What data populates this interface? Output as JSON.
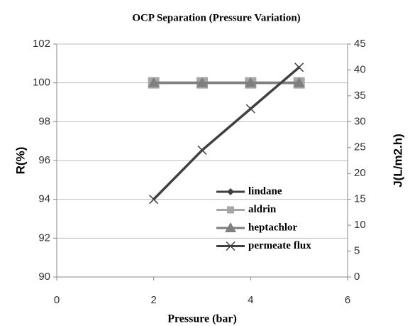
{
  "chart_data": {
    "type": "line",
    "title": "OCP Separation (Pressure Variation)",
    "xlabel": "Pressure (bar)",
    "ylabel": "R(%)",
    "y2label": "J(L/m2.h)",
    "x": [
      2,
      3,
      4,
      5
    ],
    "xlim": [
      0,
      6
    ],
    "xticks": [
      0,
      2,
      4,
      6
    ],
    "ylim": [
      90,
      102
    ],
    "yticks": [
      90,
      92,
      94,
      96,
      98,
      100,
      102
    ],
    "y2lim": [
      0,
      45
    ],
    "y2ticks": [
      0,
      5,
      10,
      15,
      20,
      25,
      30,
      35,
      40,
      45
    ],
    "grid": true,
    "legend": "lower right",
    "series": [
      {
        "name": "lindane",
        "color": "#404040",
        "marker": "diamond",
        "values": [
          100,
          100,
          100,
          100
        ]
      },
      {
        "name": "aldrin",
        "color": "#a6a6a6",
        "marker": "square",
        "values": [
          100,
          100,
          100,
          100
        ]
      },
      {
        "name": "heptachlor",
        "color": "#7f7f7f",
        "marker": "triangle",
        "values": [
          100,
          100,
          100,
          100
        ]
      },
      {
        "name": "permeate flux",
        "color": "#404040",
        "marker": "x",
        "axis": "y2",
        "values": [
          15,
          24.5,
          32.5,
          40.5
        ]
      }
    ]
  }
}
